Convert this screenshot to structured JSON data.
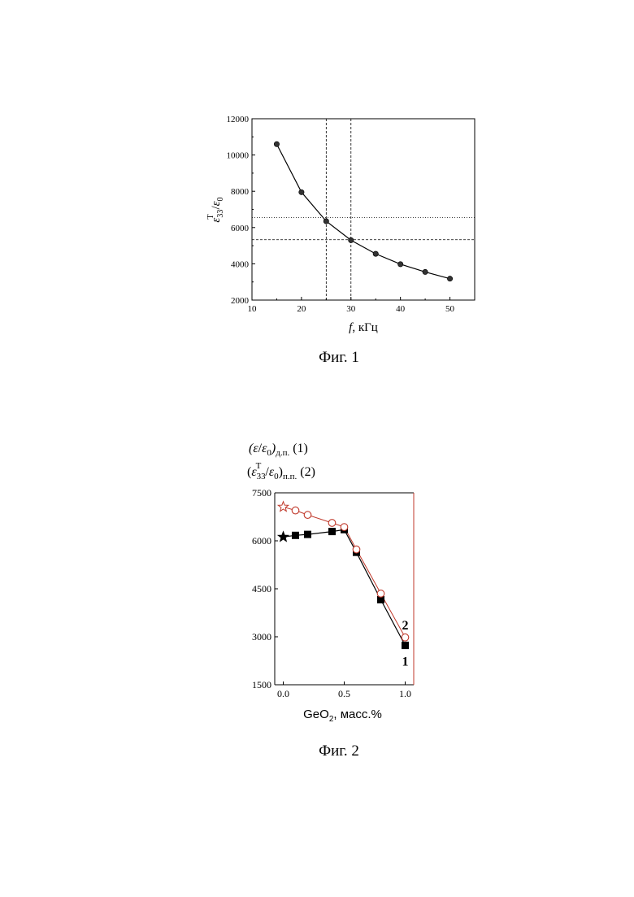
{
  "chart_data": [
    {
      "type": "line",
      "caption": "Фиг. 1",
      "xlabel_var": "f",
      "xlabel_unit": ", кГц",
      "ylabel": {
        "num": "ε",
        "sup": "T",
        "sub": "33",
        "den": "ε",
        "den_sub": "0"
      },
      "xlim": [
        10,
        55
      ],
      "ylim": [
        2000,
        12000
      ],
      "x_ticks": [
        "10",
        "20",
        "30",
        "40",
        "50"
      ],
      "y_ticks": [
        "2000",
        "4000",
        "6000",
        "8000",
        "10000",
        "12000"
      ],
      "x": [
        15,
        20,
        25,
        30,
        35,
        40,
        45,
        50
      ],
      "values": [
        10600,
        7950,
        6350,
        5300,
        4550,
        3980,
        3550,
        3180
      ],
      "reference_lines": {
        "vertical": [
          25,
          30
        ],
        "horizontal": [
          6550,
          5330
        ]
      },
      "colors": {
        "series": "#000000"
      }
    },
    {
      "type": "line",
      "caption": "Фиг. 2",
      "xlabel": "GeO",
      "xlabel_sub": "2",
      "xlabel_rest": ", масс.%",
      "ylabel_line1": {
        "open": "(",
        "num": "ε",
        "den": "ε",
        "den_sub": "0",
        "close": ")",
        "sub": "д.п.",
        "ref": "(1)"
      },
      "ylabel_line2": {
        "open": "(",
        "num": "ε",
        "sup": "T",
        "sub": "33",
        "den": "ε",
        "den_sub": "0",
        "close": ")",
        "close_sub": "п.п.",
        "ref": "(2)"
      },
      "xlim": [
        -0.07,
        1.07
      ],
      "ylim": [
        1500,
        7500
      ],
      "x_ticks": [
        "0.0",
        "0.5",
        "1.0"
      ],
      "y_ticks": [
        "1500",
        "3000",
        "4500",
        "6000",
        "7500"
      ],
      "series": [
        {
          "name": "1",
          "x": [
            0.0,
            0.1,
            0.2,
            0.4,
            0.5,
            0.6,
            0.8,
            1.0
          ],
          "values": [
            6120,
            6170,
            6200,
            6290,
            6350,
            5640,
            4160,
            2730
          ],
          "color": "#000000",
          "marker": "filled-square",
          "first_marker": "filled-star"
        },
        {
          "name": "2",
          "x": [
            0.0,
            0.1,
            0.2,
            0.4,
            0.5,
            0.6,
            0.8,
            1.0
          ],
          "values": [
            7060,
            6950,
            6810,
            6560,
            6430,
            5730,
            4350,
            2980
          ],
          "color": "#c0392b",
          "marker": "open-circle",
          "first_marker": "open-star"
        }
      ]
    }
  ]
}
